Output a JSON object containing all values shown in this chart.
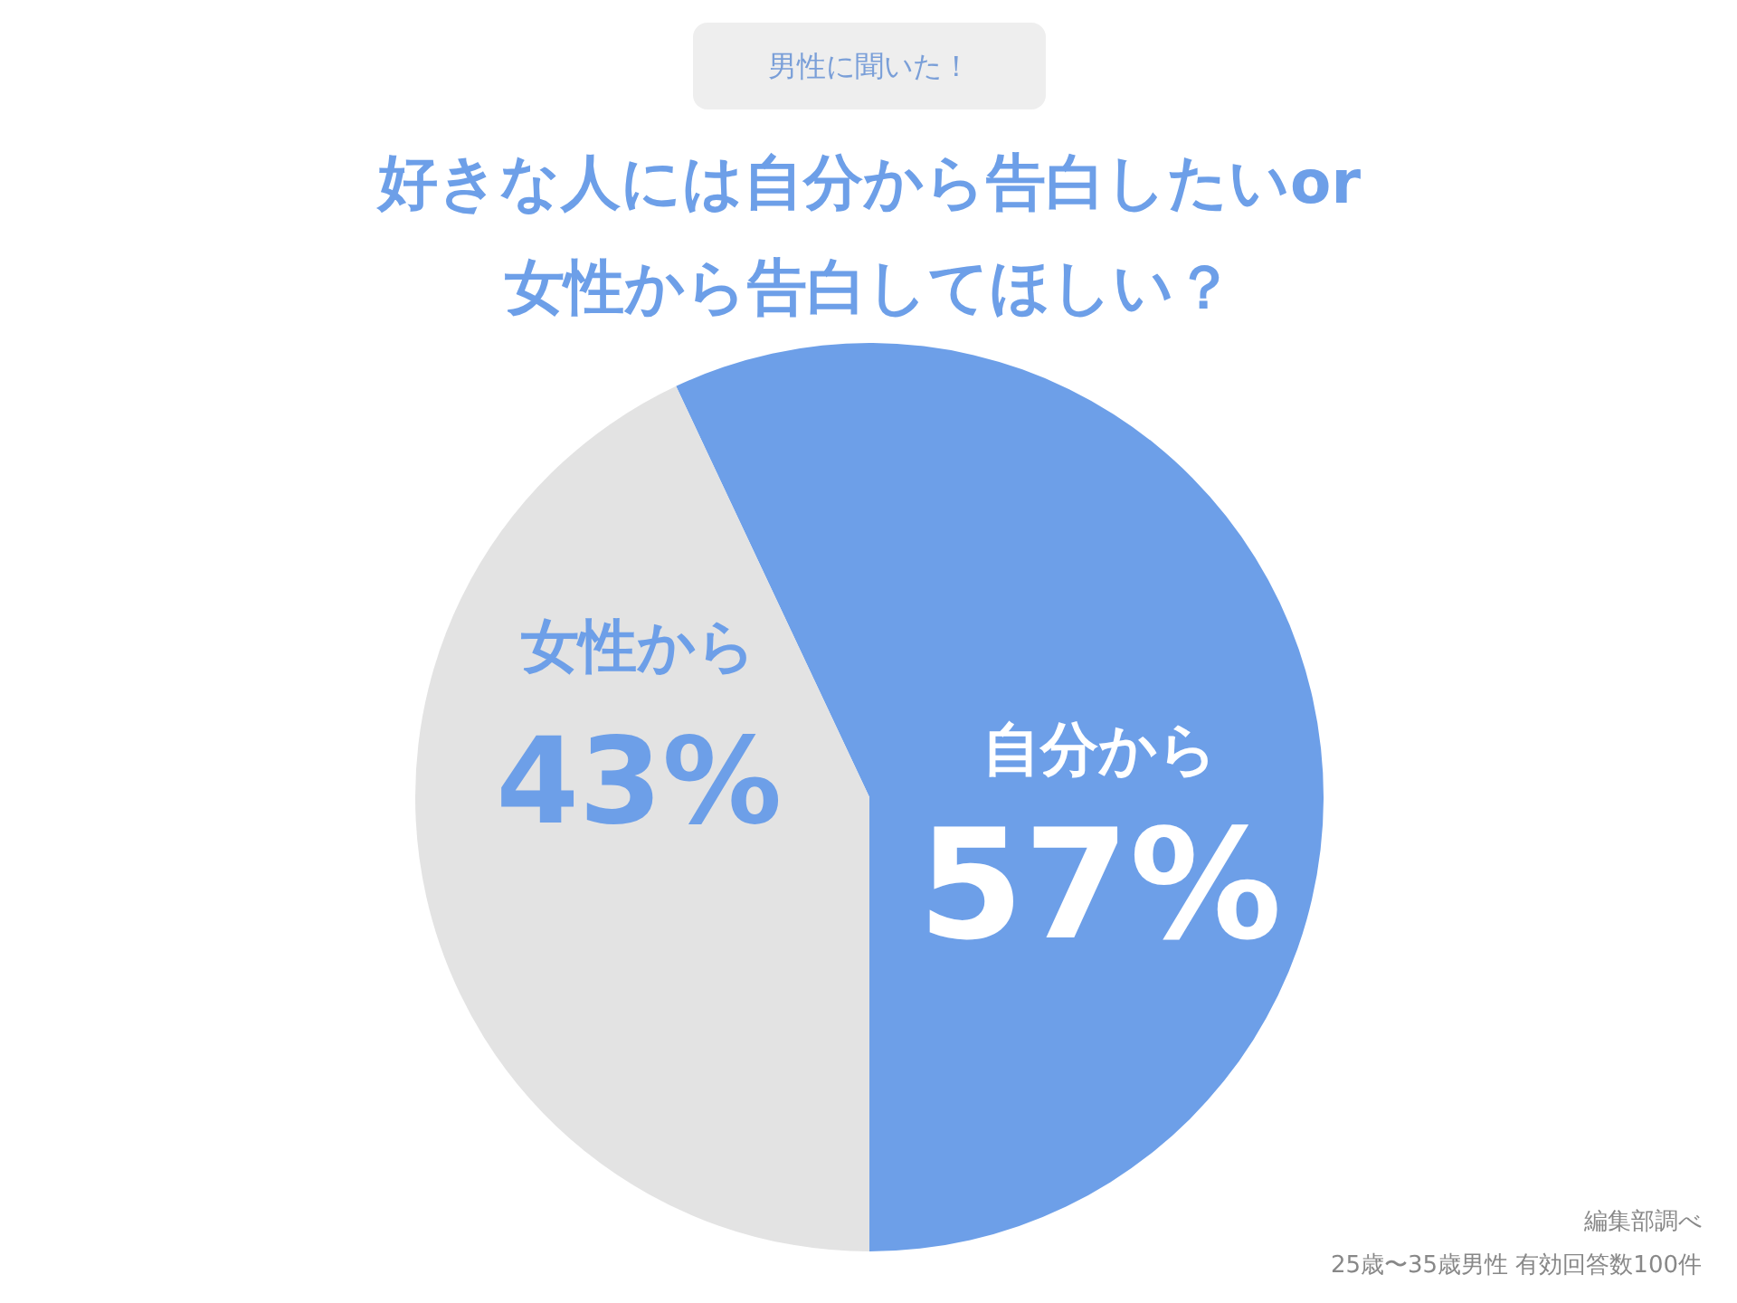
{
  "chart_data": {
    "type": "pie",
    "subtitle": "男性に聞いた！",
    "title": "好きな人には自分から告白したいor\n女性から告白してほしい？",
    "categories": [
      "自分から",
      "女性から"
    ],
    "values": [
      57,
      43
    ],
    "colors": [
      "#6d9fe8",
      "#e3e3e3"
    ],
    "value_labels": [
      "57%",
      "43%"
    ],
    "annotations": [
      "編集部調べ",
      "25歳〜35歳男性 有効回答数100件"
    ]
  }
}
